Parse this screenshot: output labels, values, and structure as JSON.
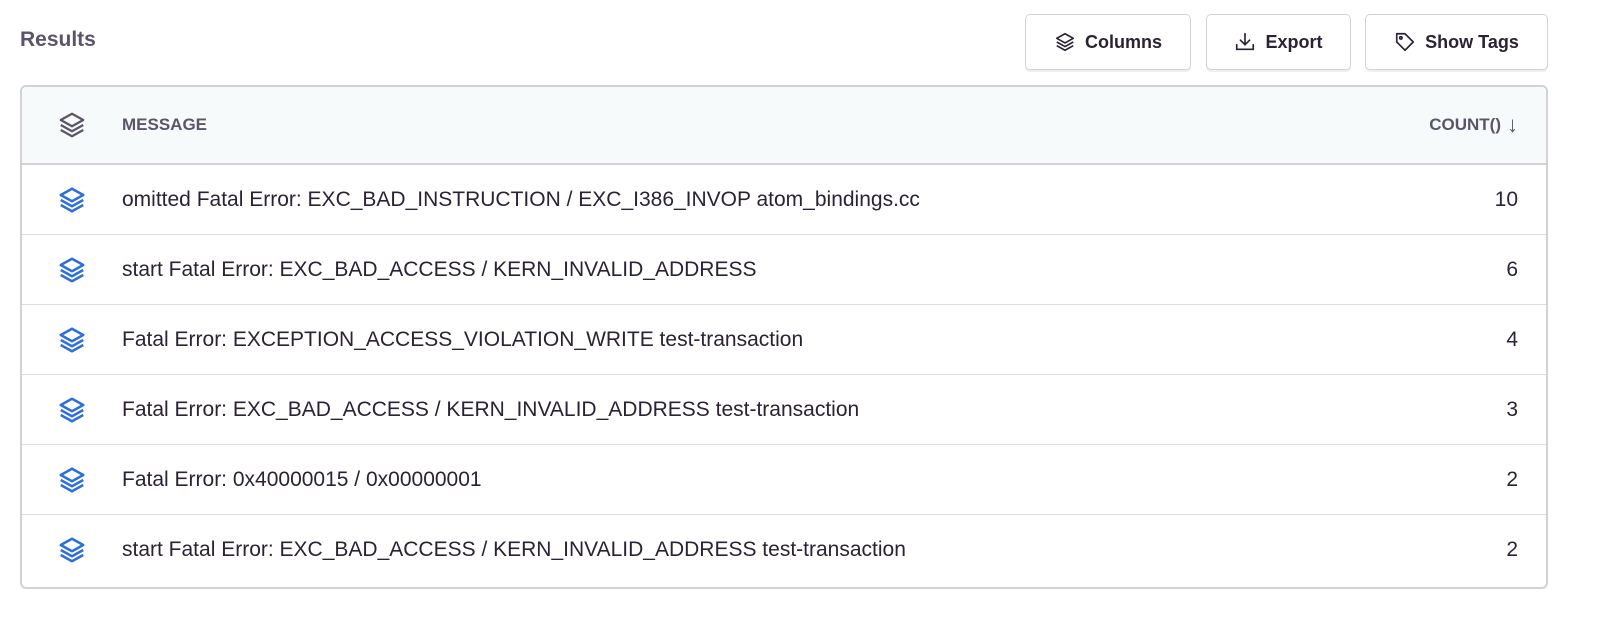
{
  "title": "Results",
  "toolbar": {
    "columns": "Columns",
    "export": "Export",
    "show_tags": "Show Tags"
  },
  "table": {
    "headers": {
      "message": "MESSAGE",
      "count": "COUNT()",
      "sort": "descending"
    },
    "accent": "#2c6fdb",
    "rows": [
      {
        "message": "omitted Fatal Error: EXC_BAD_INSTRUCTION / EXC_I386_INVOP atom_bindings.cc",
        "count": "10"
      },
      {
        "message": "start Fatal Error: EXC_BAD_ACCESS / KERN_INVALID_ADDRESS",
        "count": "6"
      },
      {
        "message": "Fatal Error: EXCEPTION_ACCESS_VIOLATION_WRITE test-transaction",
        "count": "4"
      },
      {
        "message": "Fatal Error: EXC_BAD_ACCESS / KERN_INVALID_ADDRESS test-transaction",
        "count": "3"
      },
      {
        "message": "Fatal Error: 0x40000015 / 0x00000001",
        "count": "2"
      },
      {
        "message": "start Fatal Error: EXC_BAD_ACCESS / KERN_INVALID_ADDRESS test-transaction",
        "count": "2"
      }
    ]
  }
}
